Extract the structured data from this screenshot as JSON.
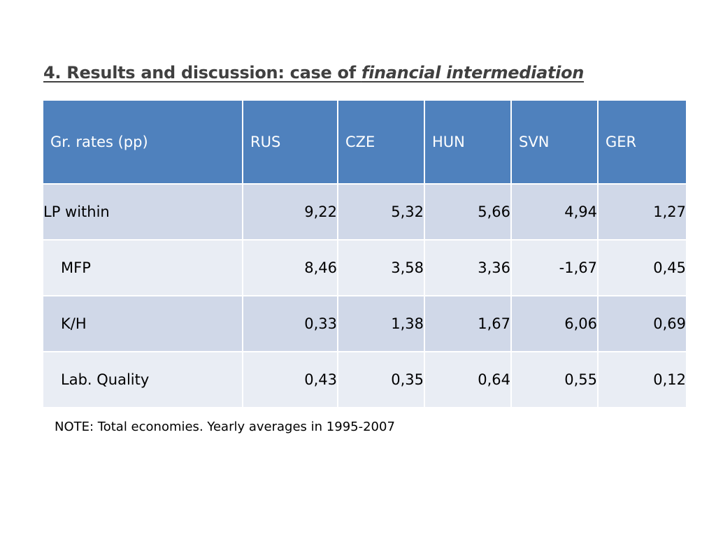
{
  "title": {
    "prefix": "4. Results and discussion: case of ",
    "emphasis": "financial intermediation"
  },
  "table": {
    "headers": [
      "Gr. rates (pp)",
      "RUS",
      "CZE",
      "HUN",
      "SVN",
      "GER"
    ],
    "rows": [
      {
        "label": "LP within",
        "values": [
          "9,22",
          "5,32",
          "5,66",
          "4,94",
          "1,27"
        ]
      },
      {
        "label": "MFP",
        "values": [
          "8,46",
          "3,58",
          "3,36",
          "-1,67",
          "0,45"
        ]
      },
      {
        "label": "K/H",
        "values": [
          "0,33",
          "1,38",
          "1,67",
          "6,06",
          "0,69"
        ]
      },
      {
        "label": "Lab. Quality",
        "values": [
          "0,43",
          "0,35",
          "0,64",
          "0,55",
          "0,12"
        ]
      }
    ]
  },
  "note": "NOTE: Total economies. Yearly averages in 1995-2007",
  "colors": {
    "header_bg": "#4f81bd",
    "row_dark": "#d0d8e8",
    "row_light": "#e9edf4",
    "title_text": "#404040"
  }
}
